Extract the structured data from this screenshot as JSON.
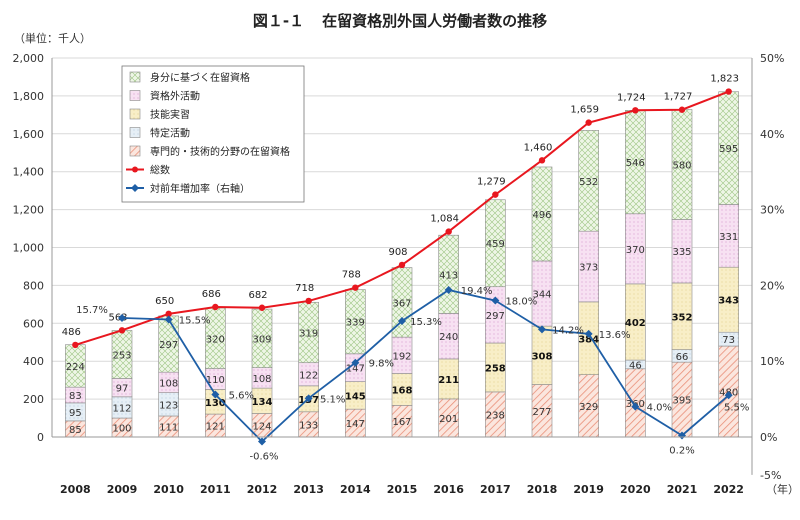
{
  "title_num": "図１-１",
  "title_text": "在留資格別外国人労働者数の推移",
  "unit_label": "（単位：千人）",
  "x_unit": "（年）",
  "colors": {
    "mibun": "#d8ebc9",
    "shikakugai": "#f4d6ee",
    "gino": "#f7ecbf",
    "tokutei": "#dce8f2",
    "senmon": "#f6d2c6",
    "total": "#e8171f",
    "rate": "#1f5fa6"
  },
  "chart_data": {
    "type": "bar",
    "title": "在留資格別外国人労働者数の推移",
    "categories": [
      "2008",
      "2009",
      "2010",
      "2011",
      "2012",
      "2013",
      "2014",
      "2015",
      "2016",
      "2017",
      "2018",
      "2019",
      "2020",
      "2021",
      "2022"
    ],
    "ylim": [
      0,
      2000
    ],
    "y2lim": [
      -5,
      50
    ],
    "y_ticks": [
      "0",
      "200",
      "400",
      "600",
      "800",
      "1,000",
      "1,200",
      "1,400",
      "1,600",
      "1,800",
      "2,000"
    ],
    "y2_ticks": [
      "-5%",
      "0%",
      "10%",
      "20%",
      "30%",
      "40%",
      "50%"
    ],
    "series": [
      {
        "name": "専門的・技術的分野の在留資格",
        "key": "senmon",
        "values": [
          85,
          100,
          111,
          121,
          124,
          133,
          147,
          167,
          201,
          238,
          277,
          329,
          360,
          395,
          480
        ]
      },
      {
        "name": "特定活動",
        "key": "tokutei",
        "values": [
          95,
          112,
          123,
          null,
          null,
          null,
          null,
          null,
          null,
          null,
          null,
          null,
          46,
          66,
          73
        ]
      },
      {
        "name": "技能実習",
        "key": "gino",
        "values": [
          null,
          null,
          null,
          130,
          134,
          137,
          145,
          168,
          211,
          258,
          308,
          384,
          402,
          352,
          343
        ]
      },
      {
        "name": "資格外活動",
        "key": "shikakugai",
        "values": [
          83,
          97,
          108,
          110,
          108,
          122,
          147,
          192,
          240,
          297,
          344,
          373,
          370,
          335,
          331
        ]
      },
      {
        "name": "身分に基づく在留資格",
        "key": "mibun",
        "values": [
          224,
          253,
          297,
          320,
          309,
          319,
          339,
          367,
          413,
          459,
          496,
          532,
          546,
          580,
          595
        ]
      }
    ],
    "bold_series": [
      "gino"
    ],
    "totals": {
      "name": "総数",
      "values": [
        486,
        563,
        650,
        686,
        682,
        718,
        788,
        908,
        1084,
        1279,
        1460,
        1659,
        1724,
        1727,
        1823
      ],
      "labels": [
        "486",
        "563",
        "650",
        "686",
        "682",
        "718",
        "788",
        "908",
        "1,084",
        "1,279",
        "1,460",
        "1,659",
        "1,724",
        "1,727",
        "1,823"
      ]
    },
    "growth_rate": {
      "name": "対前年増加率（右軸）",
      "values": [
        null,
        15.7,
        15.5,
        5.6,
        -0.6,
        5.1,
        9.8,
        15.3,
        19.4,
        18.0,
        14.2,
        13.6,
        4.0,
        0.2,
        5.5
      ],
      "labels": [
        "",
        "15.7%",
        "15.5%",
        "5.6%",
        "-0.6%",
        "5.1%",
        "9.8%",
        "15.3%",
        "19.4%",
        "18.0%",
        "14.2%",
        "13.6%",
        "4.0%",
        "0.2%",
        "5.5%"
      ]
    },
    "legend": {
      "position": "top-left",
      "items": [
        {
          "label": "身分に基づく在留資格",
          "key": "mibun",
          "kind": "box"
        },
        {
          "label": "資格外活動",
          "key": "shikakugai",
          "kind": "box"
        },
        {
          "label": "技能実習",
          "key": "gino",
          "kind": "box"
        },
        {
          "label": "特定活動",
          "key": "tokutei",
          "kind": "box"
        },
        {
          "label": "専門的・技術的分野の在留資格",
          "key": "senmon",
          "kind": "box"
        },
        {
          "label": "総数",
          "key": "total",
          "kind": "line-circle"
        },
        {
          "label": "対前年増加率（右軸）",
          "key": "rate",
          "kind": "line-diamond"
        }
      ]
    }
  }
}
